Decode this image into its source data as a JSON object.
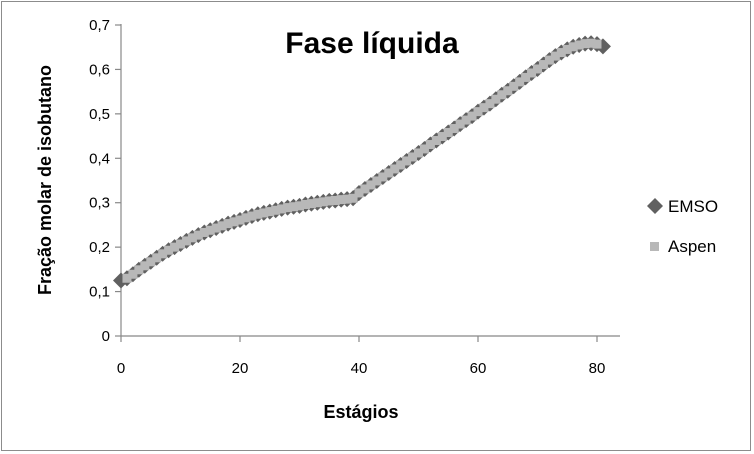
{
  "chart_data": {
    "type": "scatter",
    "title": "Fase líquida",
    "xlabel": "Estágios",
    "ylabel": "Fração molar de isobutano",
    "xlim": [
      0,
      80
    ],
    "ylim": [
      0,
      0.7
    ],
    "xticks": [
      "0",
      "20",
      "40",
      "60",
      "80"
    ],
    "yticks": [
      "0",
      "0,1",
      "0,2",
      "0,3",
      "0,4",
      "0,5",
      "0,6",
      "0,7"
    ],
    "grid": false,
    "legend_position": "right",
    "colors": {
      "EMSO": "#606060",
      "Aspen": "#b8b8b8"
    },
    "series": [
      {
        "name": "EMSO",
        "marker": "diamond",
        "x": [
          0,
          1,
          2,
          3,
          4,
          5,
          6,
          7,
          8,
          9,
          10,
          11,
          12,
          13,
          14,
          15,
          16,
          17,
          18,
          19,
          20,
          21,
          22,
          23,
          24,
          25,
          26,
          27,
          28,
          29,
          30,
          31,
          32,
          33,
          34,
          35,
          36,
          37,
          38,
          39,
          40,
          41,
          42,
          43,
          44,
          45,
          46,
          47,
          48,
          49,
          50,
          51,
          52,
          53,
          54,
          55,
          56,
          57,
          58,
          59,
          60,
          61,
          62,
          63,
          64,
          65,
          66,
          67,
          68,
          69,
          70,
          71,
          72,
          73,
          74,
          75,
          76,
          77,
          78,
          79,
          80,
          81
        ],
        "y": [
          0.125,
          0.13,
          0.139,
          0.149,
          0.158,
          0.167,
          0.176,
          0.185,
          0.193,
          0.2,
          0.207,
          0.214,
          0.221,
          0.227,
          0.233,
          0.238,
          0.243,
          0.248,
          0.253,
          0.257,
          0.261,
          0.266,
          0.27,
          0.274,
          0.277,
          0.28,
          0.283,
          0.286,
          0.289,
          0.291,
          0.293,
          0.296,
          0.298,
          0.3,
          0.302,
          0.304,
          0.305,
          0.307,
          0.308,
          0.31,
          0.322,
          0.331,
          0.34,
          0.349,
          0.358,
          0.367,
          0.376,
          0.385,
          0.394,
          0.403,
          0.412,
          0.421,
          0.431,
          0.44,
          0.449,
          0.458,
          0.467,
          0.477,
          0.486,
          0.495,
          0.505,
          0.514,
          0.523,
          0.533,
          0.543,
          0.552,
          0.562,
          0.572,
          0.582,
          0.592,
          0.601,
          0.611,
          0.621,
          0.63,
          0.638,
          0.645,
          0.651,
          0.655,
          0.658,
          0.659,
          0.657,
          0.652
        ]
      },
      {
        "name": "Aspen",
        "marker": "square",
        "x": [
          1,
          2,
          3,
          4,
          5,
          6,
          7,
          8,
          9,
          10,
          11,
          12,
          13,
          14,
          15,
          16,
          17,
          18,
          19,
          20,
          21,
          22,
          23,
          24,
          25,
          26,
          27,
          28,
          29,
          30,
          31,
          32,
          33,
          34,
          35,
          36,
          37,
          38,
          39,
          40,
          41,
          42,
          43,
          44,
          45,
          46,
          47,
          48,
          49,
          50,
          51,
          52,
          53,
          54,
          55,
          56,
          57,
          58,
          59,
          60,
          61,
          62,
          63,
          64,
          65,
          66,
          67,
          68,
          69,
          70,
          71,
          72,
          73,
          74,
          75,
          76,
          77,
          78,
          79,
          80
        ],
        "y": [
          0.13,
          0.139,
          0.149,
          0.158,
          0.167,
          0.176,
          0.185,
          0.193,
          0.2,
          0.207,
          0.214,
          0.221,
          0.227,
          0.233,
          0.238,
          0.243,
          0.248,
          0.253,
          0.257,
          0.261,
          0.266,
          0.27,
          0.274,
          0.277,
          0.28,
          0.283,
          0.286,
          0.289,
          0.291,
          0.293,
          0.296,
          0.298,
          0.3,
          0.302,
          0.304,
          0.305,
          0.307,
          0.308,
          0.31,
          0.322,
          0.331,
          0.34,
          0.349,
          0.358,
          0.367,
          0.376,
          0.385,
          0.394,
          0.403,
          0.412,
          0.421,
          0.431,
          0.44,
          0.449,
          0.458,
          0.467,
          0.477,
          0.486,
          0.495,
          0.505,
          0.514,
          0.523,
          0.533,
          0.543,
          0.552,
          0.562,
          0.572,
          0.582,
          0.592,
          0.601,
          0.611,
          0.621,
          0.63,
          0.638,
          0.645,
          0.651,
          0.655,
          0.658,
          0.659,
          0.657
        ]
      }
    ]
  }
}
